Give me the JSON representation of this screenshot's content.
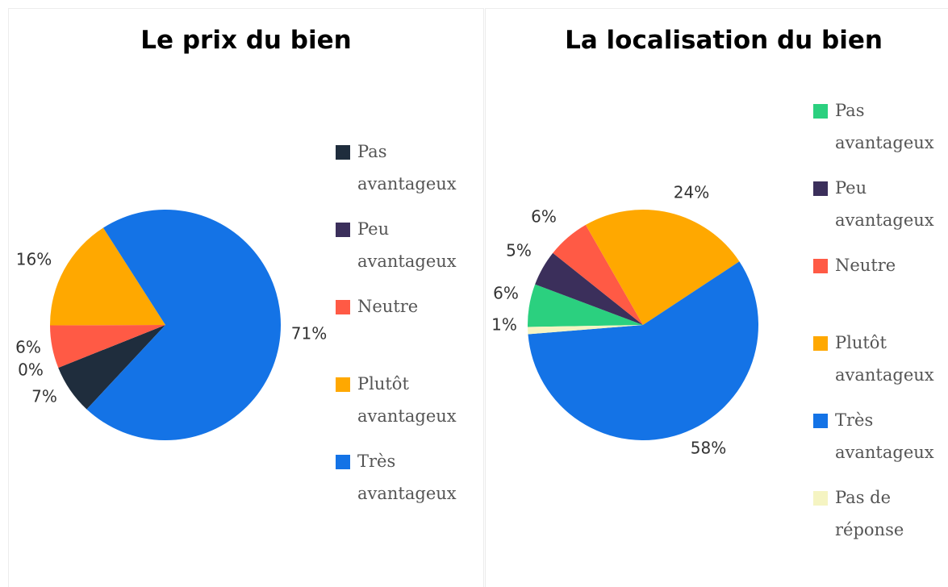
{
  "chart_data": [
    {
      "type": "pie",
      "title": "Le prix du bien",
      "categories": [
        "Pas avantageux",
        "Peu avantageux",
        "Neutre",
        "Plutôt avantageux",
        "Très avantageux"
      ],
      "values": [
        7,
        0,
        6,
        16,
        71
      ],
      "value_labels": [
        "7%",
        "0%",
        "6%",
        "16%",
        "71%"
      ],
      "colors": [
        "#1f2d3d",
        "#3b2f5b",
        "#ff5a45",
        "#ffa800",
        "#1473e6"
      ]
    },
    {
      "type": "pie",
      "title": "La localisation du bien",
      "categories": [
        "Pas avantageux",
        "Peu avantageux",
        "Neutre",
        "Plutôt avantageux",
        "Très avantageux",
        "Pas de réponse"
      ],
      "values": [
        6,
        5,
        6,
        24,
        58,
        1
      ],
      "value_labels": [
        "6%",
        "5%",
        "6%",
        "24%",
        "58%",
        "1%"
      ],
      "colors": [
        "#2bd07f",
        "#3b2f5b",
        "#ff5a45",
        "#ffa800",
        "#1473e6",
        "#f5f4c2"
      ]
    }
  ]
}
